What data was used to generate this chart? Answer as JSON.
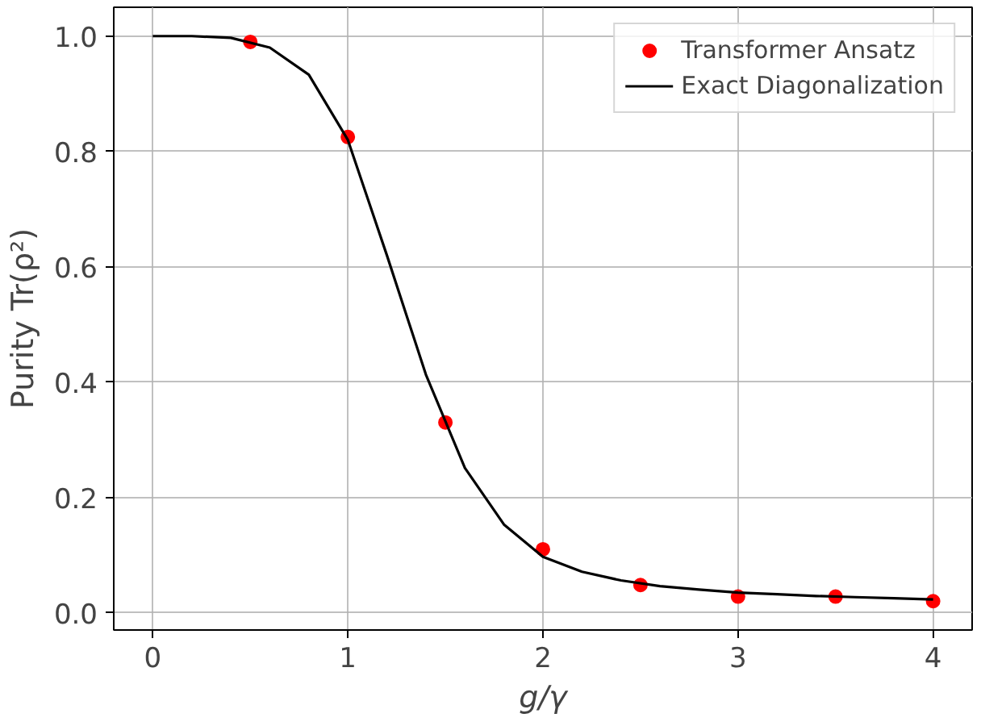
{
  "chart_data": {
    "type": "line",
    "xlabel": "g/γ",
    "ylabel": "Purity Tr(ρ²)",
    "xlim": [
      -0.2,
      4.2
    ],
    "ylim": [
      -0.03,
      1.05
    ],
    "xticks": [
      0,
      1,
      2,
      3,
      4
    ],
    "yticks": [
      {
        "value": 0,
        "label": "0.0"
      },
      0.2,
      0.4,
      0.6,
      0.8,
      {
        "value": 1,
        "label": "1.0"
      }
    ],
    "grid": true,
    "legend": "top right",
    "series": [
      {
        "name": "Transformer Ansatz",
        "type": "scatter",
        "marker": "circle",
        "color": "#ff0000",
        "x": [
          0.5,
          1.0,
          1.5,
          2.0,
          2.5,
          3.0,
          3.5,
          4.0
        ],
        "values": [
          0.99,
          0.825,
          0.33,
          0.11,
          0.048,
          0.028,
          0.028,
          0.02
        ]
      },
      {
        "name": "Exact Diagonalization",
        "color": "#000000",
        "x": [
          0,
          0.2,
          0.4,
          0.6,
          0.8,
          1.0,
          1.2,
          1.4,
          1.6,
          1.8,
          2.0,
          2.2,
          2.4,
          2.6,
          2.8,
          3.0,
          3.2,
          3.4,
          3.6,
          3.8,
          4.0
        ],
        "values": [
          1.0,
          1.0,
          0.997,
          0.98,
          0.933,
          0.82,
          0.62,
          0.413,
          0.251,
          0.153,
          0.097,
          0.071,
          0.056,
          0.046,
          0.04,
          0.035,
          0.032,
          0.029,
          0.027,
          0.025,
          0.023
        ]
      }
    ]
  }
}
